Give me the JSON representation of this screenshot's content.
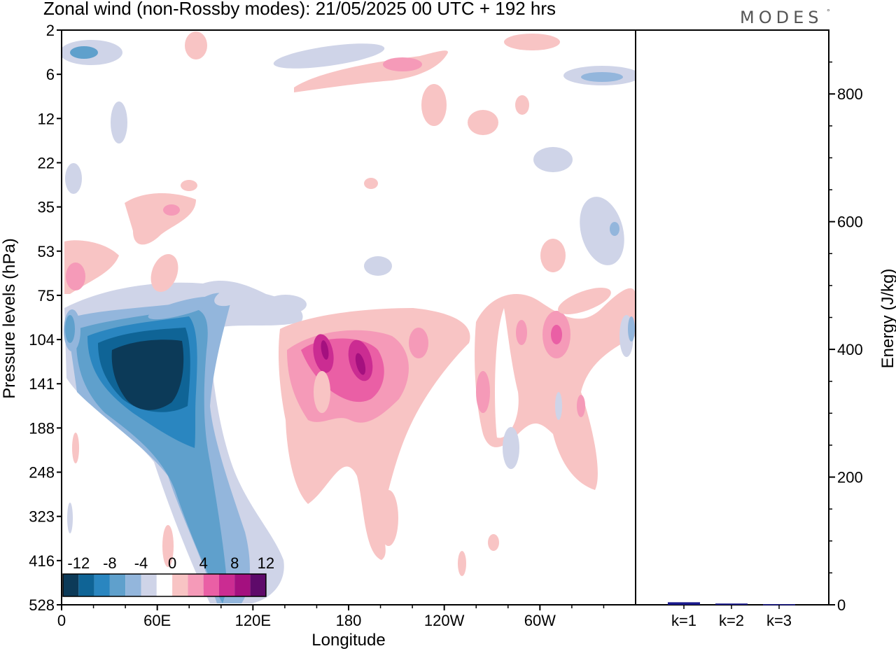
{
  "header": {
    "title": "Zonal wind (non-Rossby modes):  21/05/2025  00 UTC  + 192 hrs",
    "logo": "MODES",
    "logo_mark": "°"
  },
  "chart_data": [
    {
      "type": "heatmap",
      "title": "Zonal wind (non-Rossby modes):  21/05/2025  00 UTC  + 192 hrs",
      "xlabel": "Longitude",
      "ylabel": "Pressure levels (hPa)",
      "x_ticks": [
        "0",
        "60E",
        "120E",
        "180",
        "120W",
        "60W"
      ],
      "x_tick_degrees": [
        0,
        60,
        120,
        180,
        240,
        300
      ],
      "xlim": [
        0,
        360
      ],
      "y_ticks": [
        "2",
        "6",
        "12",
        "22",
        "35",
        "53",
        "75",
        "104",
        "141",
        "188",
        "248",
        "323",
        "416",
        "528"
      ],
      "colorbar": {
        "tick_labels": [
          "-12",
          "-8",
          "-4",
          "0",
          "4",
          "8",
          "12"
        ],
        "levels": [
          -14,
          -12,
          -10,
          -8,
          -6,
          -4,
          -2,
          2,
          4,
          6,
          8,
          10,
          12,
          14
        ],
        "colors": [
          "#0c3a58",
          "#0f6496",
          "#2a86c0",
          "#5fa0cc",
          "#93b6dc",
          "#cfd4e8",
          "#ffffff",
          "#f8c4c4",
          "#f59ab8",
          "#ea5fa5",
          "#cb2c92",
          "#a4107f",
          "#5e0a6a"
        ]
      },
      "features": [
        {
          "sign": "easterly",
          "peak": -14,
          "lon": [
            55,
            65
          ],
          "level": "141",
          "note": "strong easterly jet core"
        },
        {
          "sign": "westerly",
          "peak": 10,
          "lon": [
            170,
            195
          ],
          "level": "141"
        },
        {
          "sign": "westerly",
          "peak": 8,
          "lon": [
            305,
            315
          ],
          "level": "104"
        }
      ]
    },
    {
      "type": "bar",
      "ylabel": "Energy (J/kg)",
      "categories": [
        "k=1",
        "k=2",
        "k=3"
      ],
      "values": [
        4,
        2,
        1
      ],
      "ylim": [
        0,
        900
      ],
      "y_ticks": [
        "0",
        "200",
        "400",
        "600",
        "800"
      ],
      "bar_color": "#1a1a8c"
    }
  ]
}
